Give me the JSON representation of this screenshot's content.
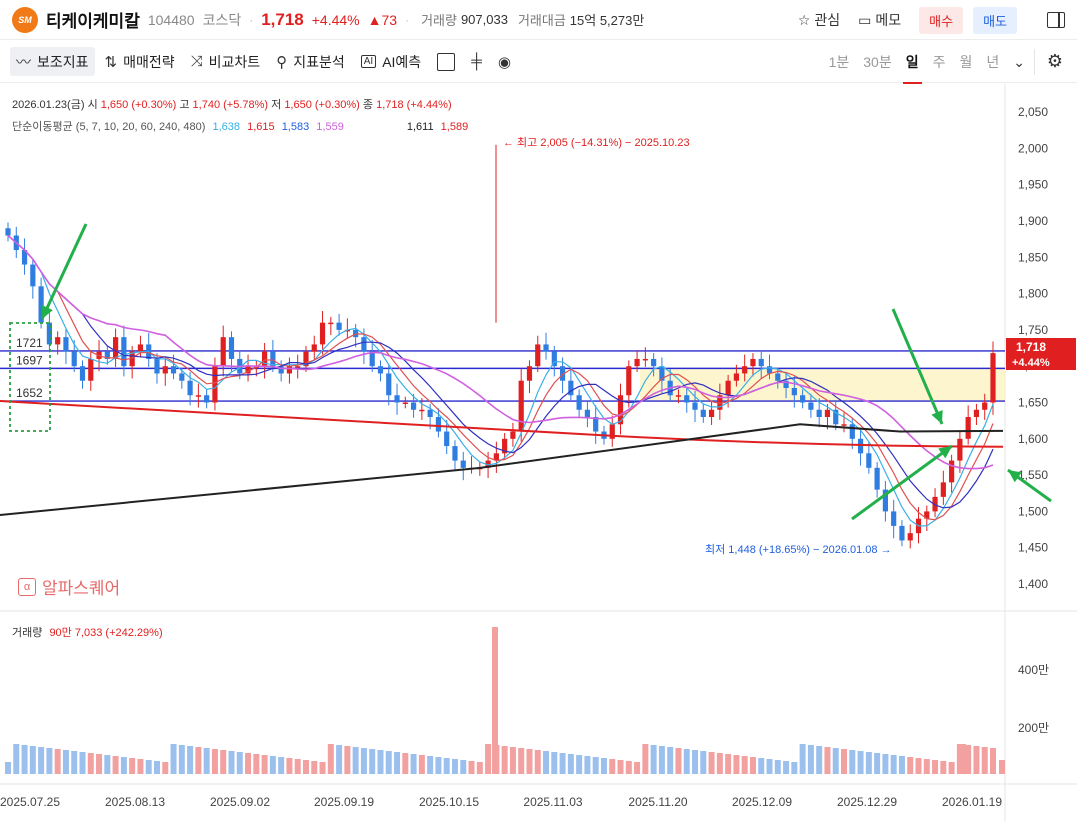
{
  "header": {
    "logo_text": "SM",
    "name": "티케이케미칼",
    "code": "104480",
    "market": "코스닥",
    "price": "1,718",
    "change_pct": "+4.44%",
    "change": "▲73",
    "volume_label": "거래량",
    "volume": "907,033",
    "amount_label": "거래대금",
    "amount": "15억 5,273만",
    "watch_label": "관심",
    "memo_label": "메모",
    "buy_label": "매수",
    "sell_label": "매도"
  },
  "toolbar": {
    "indicators": "보조지표",
    "strategy": "매매전략",
    "compare": "비교차트",
    "analysis": "지표분석",
    "ai": "AI예측",
    "periods": [
      "1분",
      "30분",
      "일",
      "주",
      "월",
      "년"
    ],
    "selected_period": "일"
  },
  "info": {
    "date": "2026.01.23(금)",
    "open_label": "시",
    "open": "1,650 (+0.30%)",
    "high_label": "고",
    "high": "1,740 (+5.78%)",
    "low_label": "저",
    "low": "1,650 (+0.30%)",
    "close_label": "종",
    "close": "1,718 (+4.44%)",
    "ma_label": "단순이동평균 (5, 7, 10, 20, 60, 240, 480)",
    "ma_values": [
      "1,638",
      "1,615",
      "1,583",
      "1,559",
      "1,611",
      "1,589"
    ],
    "volume_label": "거래량",
    "volume_value": "90만 7,033 (+242.29%)"
  },
  "annotations": {
    "max_label": "최고 2,005 (−14.31%) − 2025.10.23",
    "min_label": "최저 1,448 (+18.65%) − 2026.01.08",
    "box_levels": [
      "1721",
      "1697",
      "1652"
    ],
    "price_tag": "1,718",
    "pct_tag": "+4.44%",
    "watermark": "알파스퀘어"
  },
  "colors": {
    "up": "#e02020",
    "down": "#2f7de1",
    "accent": "#e02020",
    "zone": "#fdf3c4"
  },
  "chart_data": {
    "type": "candlestick",
    "y_ticks": [
      "2,050",
      "2,000",
      "1,950",
      "1,900",
      "1,850",
      "1,800",
      "1,750",
      "1,700",
      "1,650",
      "1,600",
      "1,550",
      "1,500",
      "1,450",
      "1,400"
    ],
    "x_ticks": [
      "2025.07.25",
      "2025.08.13",
      "2025.09.02",
      "2025.09.19",
      "2025.10.15",
      "2025.11.03",
      "2025.11.20",
      "2025.12.09",
      "2025.12.29",
      "2026.01.19"
    ],
    "volume_ticks": [
      "400만",
      "200만"
    ],
    "levels": [
      1721,
      1697,
      1652
    ],
    "closes": [
      1880,
      1860,
      1840,
      1810,
      1760,
      1730,
      1740,
      1720,
      1700,
      1680,
      1710,
      1720,
      1710,
      1740,
      1700,
      1720,
      1730,
      1710,
      1690,
      1700,
      1690,
      1680,
      1660,
      1660,
      1650,
      1700,
      1740,
      1710,
      1690,
      1700,
      1700,
      1720,
      1700,
      1690,
      1700,
      1700,
      1720,
      1730,
      1760,
      1760,
      1750,
      1750,
      1740,
      1720,
      1700,
      1690,
      1660,
      1650,
      1650,
      1640,
      1640,
      1630,
      1610,
      1590,
      1570,
      1560,
      1560,
      1560,
      1570,
      1580,
      1600,
      1610,
      1680,
      1700,
      1730,
      1720,
      1700,
      1680,
      1660,
      1640,
      1630,
      1610,
      1600,
      1620,
      1660,
      1700,
      1710,
      1710,
      1700,
      1680,
      1660,
      1660,
      1650,
      1640,
      1630,
      1640,
      1660,
      1680,
      1690,
      1700,
      1710,
      1700,
      1690,
      1680,
      1670,
      1660,
      1650,
      1640,
      1630,
      1640,
      1620,
      1620,
      1600,
      1580,
      1560,
      1530,
      1500,
      1480,
      1460,
      1470,
      1490,
      1500,
      1520,
      1540,
      1570,
      1600,
      1630,
      1640,
      1650,
      1718
    ]
  }
}
